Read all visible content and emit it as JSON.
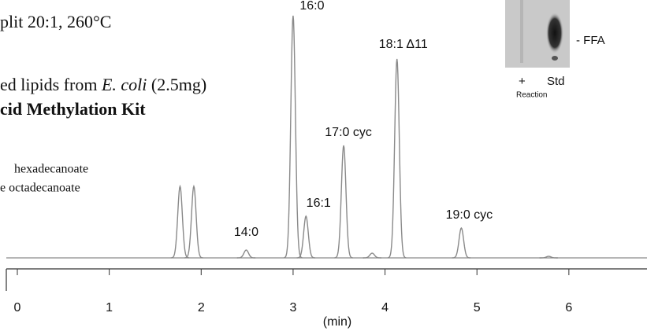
{
  "chart_data": {
    "type": "chromatogram",
    "x_label": "(min)",
    "xlim": [
      -0.12,
      6.85
    ],
    "xticks": [
      0,
      1,
      2,
      3,
      4,
      5,
      6
    ],
    "ylim": [
      0,
      330
    ],
    "color": "#8a8a8a",
    "peaks": {
      "labels": [
        null,
        null,
        "14:0",
        "16:0",
        "16:1",
        "17:0 cyc",
        null,
        "18:1 Δ11",
        "19:0 cyc",
        null
      ],
      "x": [
        1.77,
        1.92,
        2.49,
        3.0,
        3.14,
        3.55,
        3.86,
        4.13,
        4.83,
        5.78
      ],
      "values": [
        91,
        91,
        10,
        308,
        53,
        143,
        6,
        253,
        38,
        2
      ]
    }
  },
  "method_text": {
    "line1": "plit 20:1, 260°C",
    "line2": [
      "ed lipids from ",
      "E. coli",
      " (2.5mg)"
    ],
    "line3": "cid Methylation Kit",
    "std1": "hexadecanoate",
    "std2": "e octadecanoate"
  },
  "inset": {
    "band_label": "- FFA",
    "lane1": "+",
    "lane2": "Std",
    "lane1_sub": "Reaction"
  }
}
